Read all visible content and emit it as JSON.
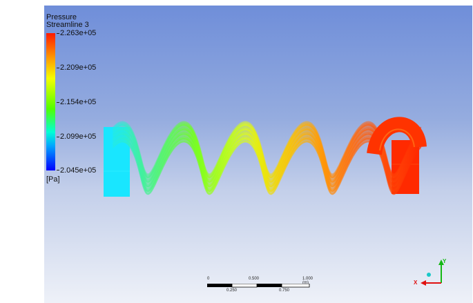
{
  "legend": {
    "title": "Pressure",
    "subtitle": "Streamline 3",
    "ticks": [
      "2.263e+05",
      "2.209e+05",
      "2.154e+05",
      "2.099e+05",
      "2.045e+05"
    ],
    "unit": "[Pa]"
  },
  "scale": {
    "top_labels": [
      "0",
      "0.500",
      "1.000 (m)"
    ],
    "bottom_labels": [
      "0.250",
      "0.750"
    ]
  },
  "axes": {
    "x": "X",
    "y": "Y"
  },
  "colors": {
    "low": "#0000ff",
    "mid": "#52ff00",
    "high": "#ff1a00",
    "background_top": "#6f8ed9",
    "background_bottom": "#eef1f8"
  }
}
